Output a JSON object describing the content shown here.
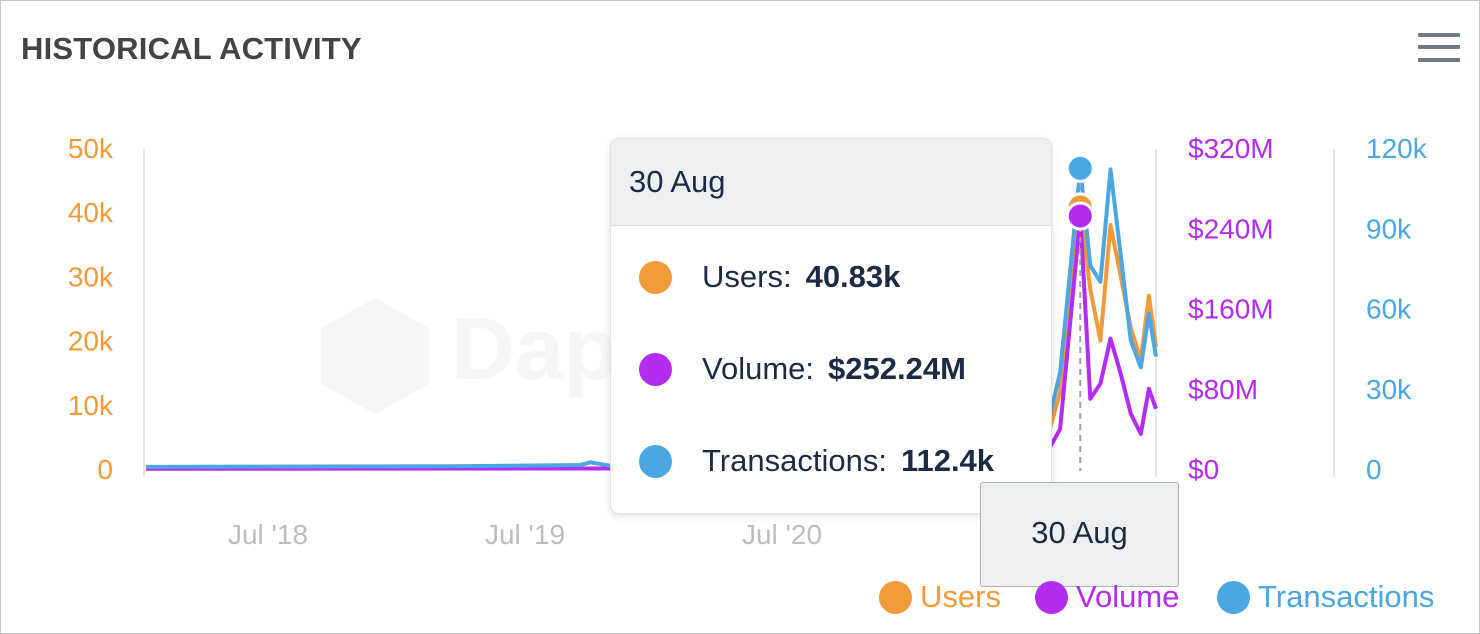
{
  "header": {
    "title": "HISTORICAL ACTIVITY",
    "menu_icon": "hamburger-menu-icon"
  },
  "colors": {
    "users": "#f09a3a",
    "volume": "#b32cf0",
    "transactions": "#4ba6e2",
    "grid": "#e6e6e6",
    "axis_label": "#bdbdbd",
    "text_dark": "#1d2a44"
  },
  "watermark": {
    "text": "Dapp"
  },
  "chart_data": {
    "type": "line",
    "x_tick_labels": [
      "Jul '18",
      "Jul '19",
      "Jul '20"
    ],
    "y_axes": [
      {
        "series": "Users",
        "ticks": [
          "0",
          "10k",
          "20k",
          "30k",
          "40k",
          "50k"
        ],
        "range": [
          0,
          50000
        ]
      },
      {
        "series": "Volume",
        "ticks": [
          "$0",
          "$80M",
          "$160M",
          "$240M",
          "$320M"
        ],
        "range": [
          0,
          320000000
        ]
      },
      {
        "series": "Transactions",
        "ticks": [
          "0",
          "30k",
          "60k",
          "90k",
          "120k"
        ],
        "range": [
          0,
          120000
        ]
      }
    ],
    "series": [
      {
        "name": "Users",
        "axis": 0,
        "points": [
          [
            0,
            50
          ],
          [
            0.3,
            60
          ],
          [
            0.46,
            90
          ],
          [
            0.55,
            120
          ],
          [
            0.72,
            140
          ],
          [
            0.885,
            500
          ],
          [
            0.905,
            12000
          ],
          [
            0.925,
            40830
          ],
          [
            0.935,
            28000
          ],
          [
            0.945,
            20000
          ],
          [
            0.955,
            38000
          ],
          [
            0.965,
            30000
          ],
          [
            0.975,
            22000
          ],
          [
            0.985,
            17000
          ],
          [
            0.993,
            27000
          ],
          [
            1.0,
            19000
          ]
        ]
      },
      {
        "name": "Volume",
        "axis": 1,
        "points": [
          [
            0,
            400000
          ],
          [
            0.4,
            500000
          ],
          [
            0.7,
            700000
          ],
          [
            0.885,
            3000000
          ],
          [
            0.905,
            40000000
          ],
          [
            0.925,
            252240000
          ],
          [
            0.935,
            70000000
          ],
          [
            0.945,
            85000000
          ],
          [
            0.955,
            130000000
          ],
          [
            0.965,
            95000000
          ],
          [
            0.975,
            55000000
          ],
          [
            0.985,
            35000000
          ],
          [
            0.993,
            80000000
          ],
          [
            1.0,
            60000000
          ]
        ]
      },
      {
        "name": "Transactions",
        "axis": 2,
        "points": [
          [
            0,
            800
          ],
          [
            0.3,
            1000
          ],
          [
            0.43,
            1500
          ],
          [
            0.44,
            2500
          ],
          [
            0.46,
            1200
          ],
          [
            0.6,
            1400
          ],
          [
            0.72,
            1700
          ],
          [
            0.885,
            4000
          ],
          [
            0.905,
            36000
          ],
          [
            0.925,
            112400
          ],
          [
            0.935,
            76000
          ],
          [
            0.945,
            70000
          ],
          [
            0.955,
            112000
          ],
          [
            0.965,
            80000
          ],
          [
            0.975,
            48000
          ],
          [
            0.985,
            38000
          ],
          [
            0.993,
            58000
          ],
          [
            1.0,
            42000
          ]
        ]
      }
    ],
    "hover": {
      "date": "30 Aug",
      "rows": [
        {
          "label": "Users:",
          "value": "40.83k"
        },
        {
          "label": "Volume:",
          "value": "$252.24M"
        },
        {
          "label": "Transactions:",
          "value": "112.4k"
        }
      ]
    },
    "legend": [
      "Users",
      "Volume",
      "Transactions"
    ],
    "legend_placement": "bottom-right",
    "grid": false
  }
}
